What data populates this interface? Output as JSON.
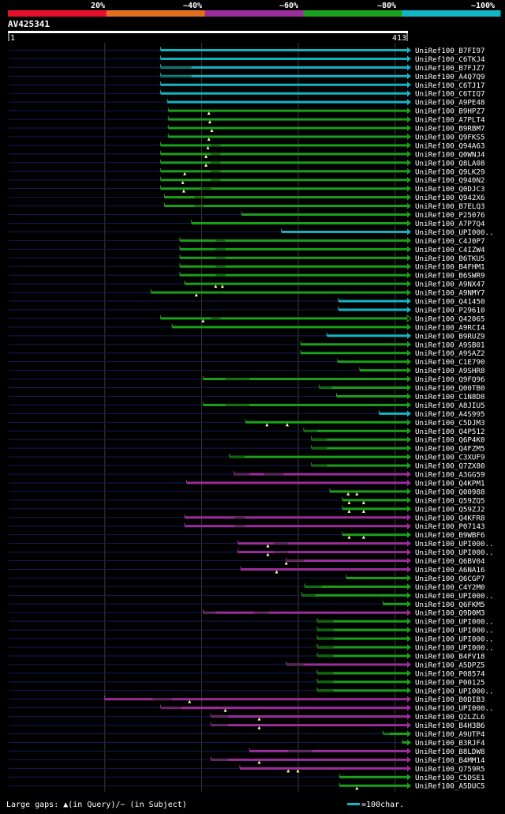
{
  "header": {
    "scale_labels": [
      "20%",
      "~40%",
      "~60%",
      "~80%",
      "~100%"
    ],
    "scale_colors": [
      "#e8112d",
      "#e07020",
      "#9b2d9b",
      "#1aa01a",
      "#12b5c4"
    ]
  },
  "query": {
    "id": "AV425341",
    "start_label": "1",
    "end_label": "413",
    "length": 413
  },
  "footer": {
    "gaps_text": "Large gaps: ▲(in Query)/− (in Subject)",
    "scale_text": "=100char."
  },
  "hits": [
    {
      "label": "UniRef100_B7FI97",
      "start": 158,
      "end": 413,
      "color": "cyan",
      "arrow": "filled",
      "marks": [],
      "gaps": []
    },
    {
      "label": "UniRef100_C6TKJ4",
      "start": 158,
      "end": 413,
      "color": "cyan",
      "arrow": "filled",
      "marks": [],
      "gaps": []
    },
    {
      "label": "UniRef100_B7FJZ7",
      "start": 158,
      "end": 413,
      "color": "cyan",
      "arrow": "filled",
      "marks": [],
      "gaps": [
        [
          158,
          190
        ]
      ]
    },
    {
      "label": "UniRef100_A4Q7Q9",
      "start": 158,
      "end": 413,
      "color": "cyan",
      "arrow": "filled",
      "marks": [],
      "gaps": [
        [
          158,
          190
        ]
      ]
    },
    {
      "label": "UniRef100_C6TJ17",
      "start": 158,
      "end": 413,
      "color": "cyan",
      "arrow": "filled",
      "marks": [],
      "gaps": []
    },
    {
      "label": "UniRef100_C6TIQ7",
      "start": 158,
      "end": 413,
      "color": "cyan",
      "arrow": "filled",
      "marks": [],
      "gaps": []
    },
    {
      "label": "UniRef100_A9PE48",
      "start": 165,
      "end": 413,
      "color": "cyan",
      "arrow": "filled",
      "marks": [],
      "gaps": []
    },
    {
      "label": "UniRef100_B9HPZ7",
      "start": 166,
      "end": 413,
      "color": "green",
      "arrow": "filled",
      "marks": [
        208
      ],
      "gaps": []
    },
    {
      "label": "UniRef100_A7PLT4",
      "start": 166,
      "end": 413,
      "color": "green",
      "arrow": "filled",
      "marks": [
        209
      ],
      "gaps": []
    },
    {
      "label": "UniRef100_B9RBM7",
      "start": 166,
      "end": 413,
      "color": "green",
      "arrow": "filled",
      "marks": [
        211
      ],
      "gaps": []
    },
    {
      "label": "UniRef100_Q9FKS5",
      "start": 166,
      "end": 413,
      "color": "green",
      "arrow": "filled",
      "marks": [
        208
      ],
      "gaps": []
    },
    {
      "label": "UniRef100_Q94A63",
      "start": 158,
      "end": 413,
      "color": "green",
      "arrow": "filled",
      "marks": [
        207
      ],
      "gaps": [
        [
          210,
          220
        ]
      ]
    },
    {
      "label": "UniRef100_Q0WNJ4",
      "start": 158,
      "end": 413,
      "color": "green",
      "arrow": "filled",
      "marks": [
        205
      ],
      "gaps": [
        [
          210,
          220
        ]
      ]
    },
    {
      "label": "UniRef100_Q8LA08",
      "start": 158,
      "end": 413,
      "color": "green",
      "arrow": "filled",
      "marks": [
        205
      ],
      "gaps": [
        [
          210,
          220
        ]
      ]
    },
    {
      "label": "UniRef100_Q9LK29",
      "start": 158,
      "end": 413,
      "color": "green",
      "arrow": "filled",
      "marks": [
        183
      ],
      "gaps": [
        [
          210,
          220
        ]
      ]
    },
    {
      "label": "UniRef100_Q940N2",
      "start": 158,
      "end": 413,
      "color": "green",
      "arrow": "filled",
      "marks": [
        181
      ],
      "gaps": [
        [
          210,
          220
        ]
      ]
    },
    {
      "label": "UniRef100_Q0DJC3",
      "start": 158,
      "end": 413,
      "color": "green",
      "arrow": "filled",
      "marks": [
        182
      ],
      "gaps": [
        [
          200,
          210
        ]
      ]
    },
    {
      "label": "UniRef100_Q942X6",
      "start": 162,
      "end": 413,
      "color": "green",
      "arrow": "filled",
      "marks": [],
      "gaps": [
        [
          193,
          203
        ]
      ]
    },
    {
      "label": "UniRef100_B7ELQ3",
      "start": 162,
      "end": 413,
      "color": "green",
      "arrow": "filled",
      "marks": [],
      "gaps": [
        [
          193,
          203
        ]
      ]
    },
    {
      "label": "UniRef100_P25076",
      "start": 242,
      "end": 413,
      "color": "green",
      "arrow": "filled",
      "marks": [],
      "gaps": []
    },
    {
      "label": "UniRef100_A7P7Q4",
      "start": 190,
      "end": 413,
      "color": "green",
      "arrow": "filled",
      "marks": [],
      "gaps": []
    },
    {
      "label": "UniRef100_UPI000..",
      "start": 283,
      "end": 413,
      "color": "cyan",
      "arrow": "filled",
      "marks": [],
      "gaps": []
    },
    {
      "label": "UniRef100_C4J0P7",
      "start": 178,
      "end": 413,
      "color": "green",
      "arrow": "filled",
      "marks": [],
      "gaps": [
        [
          215,
          225
        ]
      ]
    },
    {
      "label": "UniRef100_C4IZW4",
      "start": 178,
      "end": 413,
      "color": "green",
      "arrow": "filled",
      "marks": [],
      "gaps": [
        [
          215,
          225
        ]
      ]
    },
    {
      "label": "UniRef100_B6TKU5",
      "start": 178,
      "end": 413,
      "color": "green",
      "arrow": "filled",
      "marks": [],
      "gaps": [
        [
          215,
          225
        ]
      ]
    },
    {
      "label": "UniRef100_B4FHM1",
      "start": 178,
      "end": 413,
      "color": "green",
      "arrow": "filled",
      "marks": [],
      "gaps": [
        [
          215,
          225
        ]
      ]
    },
    {
      "label": "UniRef100_B6SWR9",
      "start": 178,
      "end": 413,
      "color": "green",
      "arrow": "filled",
      "marks": [],
      "gaps": [
        [
          215,
          225
        ]
      ]
    },
    {
      "label": "UniRef100_A9NX47",
      "start": 183,
      "end": 413,
      "color": "green",
      "arrow": "filled",
      "marks": [
        215,
        222
      ],
      "gaps": []
    },
    {
      "label": "UniRef100_A9NMY7",
      "start": 148,
      "end": 413,
      "color": "green",
      "arrow": "filled",
      "marks": [
        195
      ],
      "gaps": []
    },
    {
      "label": "UniRef100_Q41450",
      "start": 342,
      "end": 413,
      "color": "cyan",
      "arrow": "filled",
      "marks": [],
      "gaps": []
    },
    {
      "label": "UniRef100_P29610",
      "start": 342,
      "end": 413,
      "color": "cyan",
      "arrow": "filled",
      "marks": [],
      "gaps": []
    },
    {
      "label": "UniRef100_Q42065",
      "start": 158,
      "end": 413,
      "color": "green",
      "arrow": "open",
      "marks": [
        202
      ],
      "gaps": [
        [
          210,
          220
        ]
      ]
    },
    {
      "label": "UniRef100_A9RCI4",
      "start": 170,
      "end": 413,
      "color": "green",
      "arrow": "filled",
      "marks": [],
      "gaps": []
    },
    {
      "label": "UniRef100_B9RUZ9",
      "start": 330,
      "end": 413,
      "color": "cyan",
      "arrow": "filled",
      "marks": [],
      "gaps": []
    },
    {
      "label": "UniRef100_A9SB01",
      "start": 303,
      "end": 413,
      "color": "green",
      "arrow": "filled",
      "marks": [],
      "gaps": []
    },
    {
      "label": "UniRef100_A9SAZ2",
      "start": 303,
      "end": 413,
      "color": "green",
      "arrow": "filled",
      "marks": [],
      "gaps": []
    },
    {
      "label": "UniRef100_C1E790",
      "start": 341,
      "end": 413,
      "color": "green",
      "arrow": "filled",
      "marks": [],
      "gaps": []
    },
    {
      "label": "UniRef100_A9SHR8",
      "start": 364,
      "end": 413,
      "color": "green",
      "arrow": "filled",
      "marks": [],
      "gaps": []
    },
    {
      "label": "UniRef100_Q9FQ96",
      "start": 202,
      "end": 413,
      "color": "green",
      "arrow": "filled",
      "marks": [],
      "gaps": [
        [
          225,
          250
        ]
      ]
    },
    {
      "label": "UniRef100_Q00TB0",
      "start": 322,
      "end": 413,
      "color": "green",
      "arrow": "filled",
      "marks": [],
      "gaps": [
        [
          322,
          335
        ]
      ]
    },
    {
      "label": "UniRef100_C1N8D8",
      "start": 340,
      "end": 413,
      "color": "green",
      "arrow": "filled",
      "marks": [],
      "gaps": []
    },
    {
      "label": "UniRef100_A8JIU5",
      "start": 202,
      "end": 413,
      "color": "green",
      "arrow": "filled",
      "marks": [],
      "gaps": [
        [
          225,
          250
        ]
      ]
    },
    {
      "label": "UniRef100_A4S995",
      "start": 384,
      "end": 413,
      "color": "cyan",
      "arrow": "filled",
      "marks": [],
      "gaps": []
    },
    {
      "label": "UniRef100_C5DJM3",
      "start": 246,
      "end": 413,
      "color": "green",
      "arrow": "filled",
      "marks": [
        268,
        289
      ],
      "gaps": []
    },
    {
      "label": "UniRef100_Q4P512",
      "start": 306,
      "end": 413,
      "color": "green",
      "arrow": "filled",
      "marks": [],
      "gaps": [
        [
          306,
          320
        ]
      ]
    },
    {
      "label": "UniRef100_Q6P4K0",
      "start": 314,
      "end": 413,
      "color": "green",
      "arrow": "filled",
      "marks": [],
      "gaps": [
        [
          314,
          330
        ]
      ]
    },
    {
      "label": "UniRef100_Q4FZM5",
      "start": 314,
      "end": 413,
      "color": "green",
      "arrow": "filled",
      "marks": [],
      "gaps": [
        [
          314,
          330
        ]
      ]
    },
    {
      "label": "UniRef100_C3XUF9",
      "start": 229,
      "end": 413,
      "color": "green",
      "arrow": "filled",
      "marks": [],
      "gaps": [
        [
          229,
          245
        ]
      ]
    },
    {
      "label": "UniRef100_Q7ZX80",
      "start": 314,
      "end": 413,
      "color": "green",
      "arrow": "filled",
      "marks": [],
      "gaps": [
        [
          314,
          330
        ]
      ]
    },
    {
      "label": "UniRef100_A3GG59",
      "start": 234,
      "end": 413,
      "color": "magenta",
      "arrow": "filled",
      "marks": [],
      "gaps": [
        [
          234,
          250
        ],
        [
          265,
          285
        ]
      ]
    },
    {
      "label": "UniRef100_Q4KPM1",
      "start": 185,
      "end": 413,
      "color": "magenta",
      "arrow": "filled",
      "marks": [],
      "gaps": []
    },
    {
      "label": "UniRef100_Q00988",
      "start": 333,
      "end": 413,
      "color": "green",
      "arrow": "filled",
      "marks": [
        352,
        361
      ],
      "gaps": []
    },
    {
      "label": "UniRef100_Q59ZQ5",
      "start": 346,
      "end": 413,
      "color": "green",
      "arrow": "filled",
      "marks": [
        353,
        368
      ],
      "gaps": []
    },
    {
      "label": "UniRef100_Q59ZJ2",
      "start": 346,
      "end": 413,
      "color": "green",
      "arrow": "filled",
      "marks": [
        353,
        368
      ],
      "gaps": []
    },
    {
      "label": "UniRef100_Q4KFR8",
      "start": 183,
      "end": 413,
      "color": "magenta",
      "arrow": "filled",
      "marks": [],
      "gaps": [
        [
          235,
          245
        ]
      ]
    },
    {
      "label": "UniRef100_P07143",
      "start": 183,
      "end": 413,
      "color": "magenta",
      "arrow": "filled",
      "marks": [],
      "gaps": [
        [
          235,
          245
        ]
      ]
    },
    {
      "label": "UniRef100_B9WBF6",
      "start": 346,
      "end": 413,
      "color": "green",
      "arrow": "filled",
      "marks": [
        353,
        368
      ],
      "gaps": []
    },
    {
      "label": "UniRef100_UPI000..",
      "start": 238,
      "end": 413,
      "color": "magenta",
      "arrow": "filled",
      "marks": [
        269
      ],
      "gaps": [
        [
          275,
          290
        ]
      ]
    },
    {
      "label": "UniRef100_UPI000..",
      "start": 238,
      "end": 413,
      "color": "magenta",
      "arrow": "filled",
      "marks": [
        269
      ],
      "gaps": [
        [
          275,
          290
        ]
      ]
    },
    {
      "label": "UniRef100_Q6BV04",
      "start": 288,
      "end": 413,
      "color": "magenta",
      "arrow": "filled",
      "marks": [
        288
      ],
      "gaps": [
        [
          288,
          306
        ]
      ]
    },
    {
      "label": "UniRef100_A6NA16",
      "start": 241,
      "end": 413,
      "color": "magenta",
      "arrow": "filled",
      "marks": [
        278
      ],
      "gaps": []
    },
    {
      "label": "UniRef100_Q6CGP7",
      "start": 350,
      "end": 413,
      "color": "green",
      "arrow": "filled",
      "marks": [],
      "gaps": []
    },
    {
      "label": "UniRef100_C4Y2M0",
      "start": 307,
      "end": 413,
      "color": "green",
      "arrow": "filled",
      "marks": [],
      "gaps": [
        [
          307,
          325
        ]
      ]
    },
    {
      "label": "UniRef100_UPI000..",
      "start": 304,
      "end": 413,
      "color": "green",
      "arrow": "filled",
      "marks": [],
      "gaps": [
        [
          304,
          318
        ]
      ]
    },
    {
      "label": "UniRef100_Q6FKM5",
      "start": 388,
      "end": 413,
      "color": "green",
      "arrow": "filled",
      "marks": [],
      "gaps": []
    },
    {
      "label": "UniRef100_Q9D0M3",
      "start": 202,
      "end": 413,
      "color": "magenta",
      "arrow": "filled",
      "marks": [],
      "gaps": [
        [
          202,
          215
        ],
        [
          255,
          270
        ]
      ]
    },
    {
      "label": "UniRef100_UPI000..",
      "start": 320,
      "end": 413,
      "color": "green",
      "arrow": "filled",
      "marks": [],
      "gaps": [
        [
          320,
          337
        ]
      ]
    },
    {
      "label": "UniRef100_UPI000..",
      "start": 320,
      "end": 413,
      "color": "green",
      "arrow": "filled",
      "marks": [],
      "gaps": [
        [
          320,
          337
        ]
      ]
    },
    {
      "label": "UniRef100_UPI000..",
      "start": 320,
      "end": 413,
      "color": "green",
      "arrow": "filled",
      "marks": [],
      "gaps": [
        [
          320,
          337
        ]
      ]
    },
    {
      "label": "UniRef100_UPI000..",
      "start": 320,
      "end": 413,
      "color": "green",
      "arrow": "filled",
      "marks": [],
      "gaps": [
        [
          320,
          337
        ]
      ]
    },
    {
      "label": "UniRef100_B4FV18",
      "start": 320,
      "end": 413,
      "color": "green",
      "arrow": "filled",
      "marks": [],
      "gaps": [
        [
          320,
          337
        ]
      ]
    },
    {
      "label": "UniRef100_A5DPZ5",
      "start": 288,
      "end": 413,
      "color": "magenta",
      "arrow": "filled",
      "marks": [],
      "gaps": [
        [
          288,
          306
        ]
      ]
    },
    {
      "label": "UniRef100_P08574",
      "start": 320,
      "end": 413,
      "color": "green",
      "arrow": "filled",
      "marks": [],
      "gaps": [
        [
          320,
          337
        ]
      ]
    },
    {
      "label": "UniRef100_P00125",
      "start": 320,
      "end": 413,
      "color": "green",
      "arrow": "filled",
      "marks": [],
      "gaps": [
        [
          320,
          337
        ]
      ]
    },
    {
      "label": "UniRef100_UPI000..",
      "start": 320,
      "end": 413,
      "color": "green",
      "arrow": "filled",
      "marks": [],
      "gaps": [
        [
          320,
          337
        ]
      ]
    },
    {
      "label": "UniRef100_B0DIB3",
      "start": 100,
      "end": 413,
      "color": "magenta",
      "arrow": "filled",
      "marks": [
        188
      ],
      "gaps": [
        [
          150,
          170
        ]
      ]
    },
    {
      "label": "UniRef100_UPI000..",
      "start": 158,
      "end": 413,
      "color": "magenta",
      "arrow": "filled",
      "marks": [
        225
      ],
      "gaps": [
        [
          158,
          180
        ]
      ]
    },
    {
      "label": "UniRef100_Q2LZL6",
      "start": 210,
      "end": 413,
      "color": "magenta",
      "arrow": "filled",
      "marks": [
        260
      ],
      "gaps": [
        [
          210,
          228
        ]
      ]
    },
    {
      "label": "UniRef100_B4H3B6",
      "start": 210,
      "end": 413,
      "color": "magenta",
      "arrow": "filled",
      "marks": [
        260
      ],
      "gaps": [
        [
          210,
          228
        ]
      ]
    },
    {
      "label": "UniRef100_A9UTP4",
      "start": 388,
      "end": 413,
      "color": "green",
      "arrow": "filled",
      "marks": [],
      "gaps": [
        [
          388,
          395
        ]
      ]
    },
    {
      "label": "UniRef100_B3RJF4",
      "start": 408,
      "end": 413,
      "color": "green",
      "arrow": "filled",
      "marks": [],
      "gaps": []
    },
    {
      "label": "UniRef100_B8LDW8",
      "start": 250,
      "end": 413,
      "color": "magenta",
      "arrow": "filled",
      "marks": [],
      "gaps": [
        [
          290,
          315
        ]
      ]
    },
    {
      "label": "UniRef100_B4MM14",
      "start": 210,
      "end": 413,
      "color": "magenta",
      "arrow": "filled",
      "marks": [
        260
      ],
      "gaps": [
        [
          210,
          228
        ]
      ]
    },
    {
      "label": "UniRef100_Q759R5",
      "start": 240,
      "end": 413,
      "color": "magenta",
      "arrow": "filled",
      "marks": [
        290,
        300
      ],
      "gaps": []
    },
    {
      "label": "UniRef100_C5DSE1",
      "start": 343,
      "end": 413,
      "color": "green",
      "arrow": "filled",
      "marks": [],
      "gaps": []
    },
    {
      "label": "UniRef100_A5DUC5",
      "start": 343,
      "end": 413,
      "color": "green",
      "arrow": "filled",
      "marks": [
        361
      ],
      "gaps": []
    }
  ]
}
